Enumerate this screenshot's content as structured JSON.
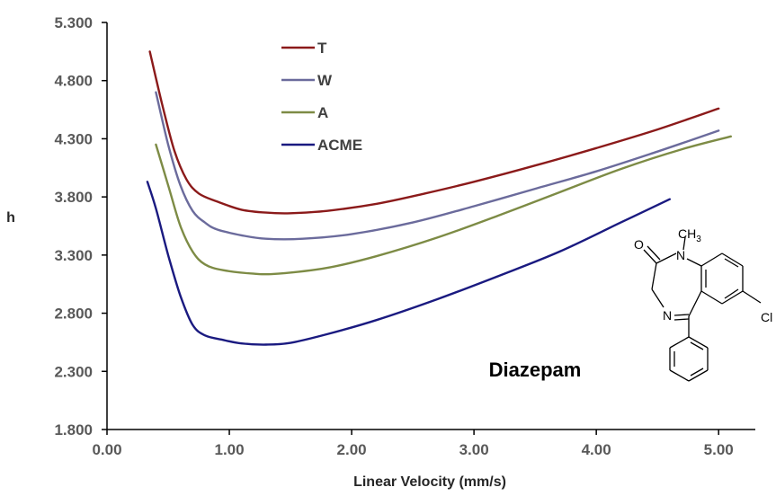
{
  "chart_data": {
    "type": "line",
    "title": "",
    "xlabel": "Linear Velocity (mm/s)",
    "ylabel": "h",
    "xlim": [
      0,
      5.3
    ],
    "ylim": [
      1.8,
      5.3
    ],
    "x_ticks": [
      "0.00",
      "1.00",
      "2.00",
      "3.00",
      "4.00",
      "5.00"
    ],
    "y_ticks": [
      "1.800",
      "2.300",
      "2.800",
      "3.300",
      "3.800",
      "4.300",
      "4.800",
      "5.300"
    ],
    "legend_position": "top-left",
    "annotation": "Diazepam",
    "molecule_labels": {
      "oxygen": "O",
      "nitrogen_methyl": "N",
      "methyl": "CH",
      "methyl_sub": "3",
      "nitrogen_imine": "N",
      "chlorine": "Cl"
    },
    "series": [
      {
        "name": "T",
        "color": "#8B1A1A",
        "points": [
          [
            0.35,
            5.05
          ],
          [
            0.45,
            4.6
          ],
          [
            0.55,
            4.2
          ],
          [
            0.65,
            3.95
          ],
          [
            0.75,
            3.83
          ],
          [
            0.9,
            3.76
          ],
          [
            1.1,
            3.69
          ],
          [
            1.3,
            3.665
          ],
          [
            1.5,
            3.66
          ],
          [
            1.8,
            3.68
          ],
          [
            2.2,
            3.74
          ],
          [
            2.6,
            3.83
          ],
          [
            3.0,
            3.93
          ],
          [
            3.5,
            4.07
          ],
          [
            4.0,
            4.22
          ],
          [
            4.5,
            4.38
          ],
          [
            5.0,
            4.56
          ]
        ]
      },
      {
        "name": "W",
        "color": "#6B6B9C",
        "points": [
          [
            0.4,
            4.7
          ],
          [
            0.5,
            4.25
          ],
          [
            0.6,
            3.9
          ],
          [
            0.7,
            3.68
          ],
          [
            0.8,
            3.58
          ],
          [
            0.9,
            3.52
          ],
          [
            1.1,
            3.47
          ],
          [
            1.3,
            3.44
          ],
          [
            1.6,
            3.44
          ],
          [
            2.0,
            3.48
          ],
          [
            2.5,
            3.58
          ],
          [
            3.0,
            3.72
          ],
          [
            3.5,
            3.87
          ],
          [
            4.0,
            4.02
          ],
          [
            4.5,
            4.19
          ],
          [
            5.0,
            4.37
          ]
        ]
      },
      {
        "name": "A",
        "color": "#7D8B45",
        "points": [
          [
            0.4,
            4.25
          ],
          [
            0.5,
            3.9
          ],
          [
            0.6,
            3.55
          ],
          [
            0.7,
            3.33
          ],
          [
            0.8,
            3.22
          ],
          [
            0.95,
            3.17
          ],
          [
            1.2,
            3.14
          ],
          [
            1.4,
            3.14
          ],
          [
            1.8,
            3.19
          ],
          [
            2.2,
            3.29
          ],
          [
            2.7,
            3.45
          ],
          [
            3.2,
            3.64
          ],
          [
            3.7,
            3.84
          ],
          [
            4.2,
            4.04
          ],
          [
            4.7,
            4.21
          ],
          [
            5.1,
            4.32
          ]
        ]
      },
      {
        "name": "ACME",
        "color": "#1A1A80",
        "points": [
          [
            0.33,
            3.93
          ],
          [
            0.4,
            3.7
          ],
          [
            0.5,
            3.3
          ],
          [
            0.6,
            2.95
          ],
          [
            0.7,
            2.7
          ],
          [
            0.8,
            2.61
          ],
          [
            0.95,
            2.57
          ],
          [
            1.1,
            2.54
          ],
          [
            1.3,
            2.53
          ],
          [
            1.5,
            2.545
          ],
          [
            1.8,
            2.62
          ],
          [
            2.2,
            2.74
          ],
          [
            2.7,
            2.92
          ],
          [
            3.2,
            3.12
          ],
          [
            3.7,
            3.33
          ],
          [
            4.2,
            3.58
          ],
          [
            4.6,
            3.78
          ]
        ]
      }
    ]
  }
}
